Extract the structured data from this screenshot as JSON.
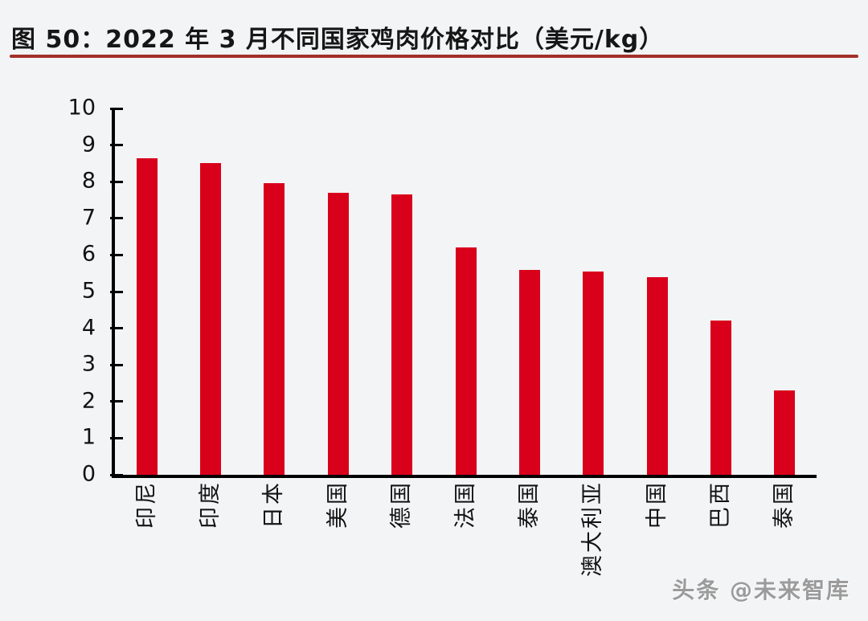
{
  "title": "图 50：2022 年 3 月不同国家鸡肉价格对比（美元/kg）",
  "watermark": "头条 @未来智库",
  "colors": {
    "background": "#f3f4f6",
    "bar": "#d9001b",
    "title_underline": "#a33029",
    "axis": "#000000",
    "text": "#121212",
    "watermark": "#9b9b9b"
  },
  "chart_data": {
    "type": "bar",
    "title": "图 50：2022 年 3 月不同国家鸡肉价格对比（美元/kg）",
    "unit": "美元/kg",
    "categories": [
      "印尼",
      "印度",
      "日本",
      "美国",
      "德国",
      "法国",
      "泰国",
      "澳大利亚",
      "中国",
      "巴西",
      "泰国"
    ],
    "values": [
      8.65,
      8.5,
      7.95,
      7.7,
      7.65,
      6.2,
      5.6,
      5.55,
      5.4,
      4.2,
      2.3
    ],
    "xlabel": "",
    "ylabel": "",
    "ylim": [
      0,
      10
    ],
    "yticks": [
      0,
      1,
      2,
      3,
      4,
      5,
      6,
      7,
      8,
      9,
      10
    ],
    "grid": false,
    "legend_position": "none",
    "bar_color": "#d9001b",
    "x_label_rotation": 90
  }
}
